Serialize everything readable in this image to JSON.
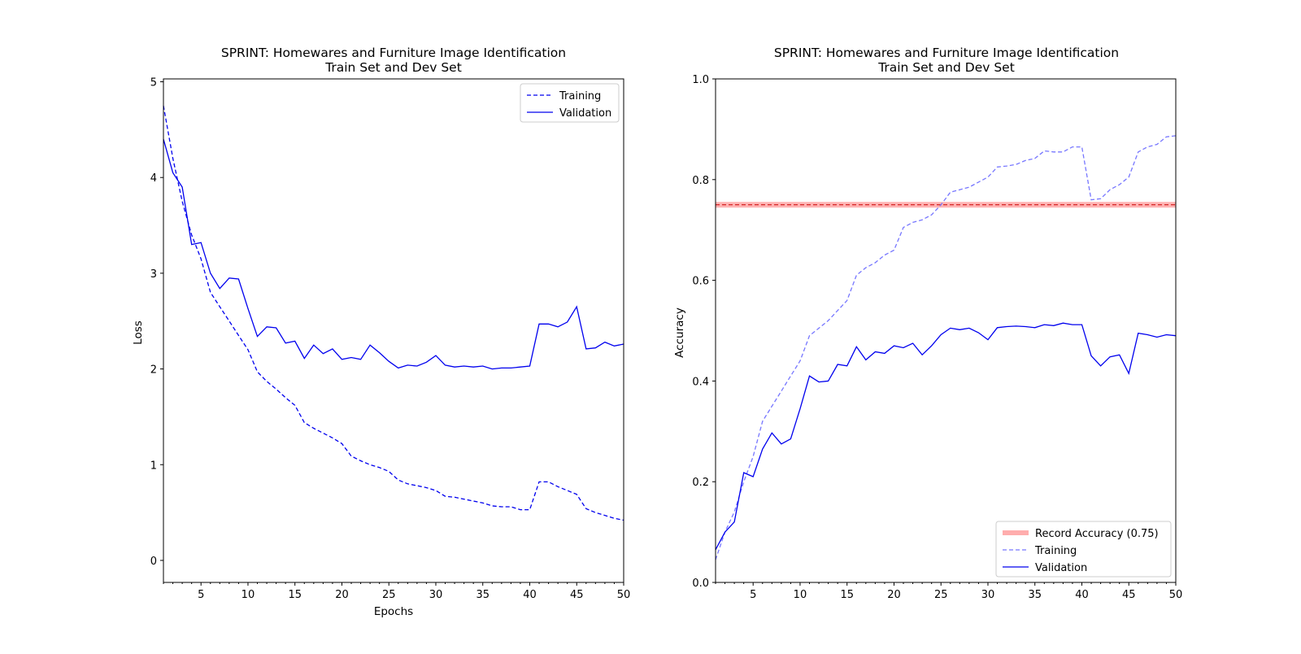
{
  "chart_data": [
    {
      "type": "line",
      "title": "SPRINT: Homewares and Furniture Image Identification",
      "subtitle": "Train Set and Dev Set",
      "xlabel": "Epochs",
      "ylabel": "Loss",
      "xlim": [
        1,
        50
      ],
      "ylim": [
        -0.23,
        5.03
      ],
      "xticks": [
        5,
        10,
        15,
        20,
        25,
        30,
        35,
        40,
        45,
        50
      ],
      "yticks": [
        0,
        1,
        2,
        3,
        4,
        5
      ],
      "grid": false,
      "legend_position": "top-right",
      "x": [
        1,
        2,
        3,
        4,
        5,
        6,
        7,
        8,
        9,
        10,
        11,
        12,
        13,
        14,
        15,
        16,
        17,
        18,
        19,
        20,
        21,
        22,
        23,
        24,
        25,
        26,
        27,
        28,
        29,
        30,
        31,
        32,
        33,
        34,
        35,
        36,
        37,
        38,
        39,
        40,
        41,
        42,
        43,
        44,
        45,
        46,
        47,
        48,
        49,
        50
      ],
      "series": [
        {
          "name": "Training",
          "style": "dashed",
          "color": "#0000ee",
          "values": [
            4.75,
            4.2,
            3.75,
            3.4,
            3.15,
            2.8,
            2.65,
            2.5,
            2.35,
            2.2,
            1.97,
            1.87,
            1.79,
            1.7,
            1.62,
            1.44,
            1.38,
            1.33,
            1.28,
            1.22,
            1.09,
            1.04,
            1.0,
            0.97,
            0.93,
            0.84,
            0.8,
            0.78,
            0.76,
            0.73,
            0.67,
            0.66,
            0.64,
            0.62,
            0.6,
            0.57,
            0.56,
            0.56,
            0.53,
            0.53,
            0.82,
            0.82,
            0.77,
            0.73,
            0.69,
            0.54,
            0.5,
            0.47,
            0.44,
            0.42
          ]
        },
        {
          "name": "Validation",
          "style": "solid",
          "color": "#0000ee",
          "values": [
            4.4,
            4.05,
            3.9,
            3.3,
            3.32,
            3.0,
            2.84,
            2.95,
            2.94,
            2.63,
            2.34,
            2.44,
            2.43,
            2.27,
            2.29,
            2.11,
            2.25,
            2.16,
            2.21,
            2.1,
            2.12,
            2.1,
            2.25,
            2.17,
            2.08,
            2.01,
            2.04,
            2.03,
            2.07,
            2.14,
            2.04,
            2.02,
            2.03,
            2.02,
            2.03,
            2.0,
            2.01,
            2.01,
            2.02,
            2.03,
            2.47,
            2.47,
            2.44,
            2.49,
            2.65,
            2.21,
            2.22,
            2.28,
            2.24,
            2.26
          ]
        }
      ]
    },
    {
      "type": "line",
      "title": "SPRINT: Homewares and Furniture Image Identification",
      "subtitle": "Train Set and Dev Set",
      "xlabel": "",
      "ylabel": "Accuracy",
      "xlim": [
        1,
        50
      ],
      "ylim": [
        0.0,
        1.0
      ],
      "xticks": [
        5,
        10,
        15,
        20,
        25,
        30,
        35,
        40,
        45,
        50
      ],
      "yticks": [
        0.0,
        0.2,
        0.4,
        0.6,
        0.8,
        1.0
      ],
      "ytick_labels": [
        "0.0",
        "0.2",
        "0.4",
        "0.6",
        "0.8",
        "1.0"
      ],
      "grid": false,
      "legend_position": "bottom-right",
      "reference_line": {
        "name": "Record Accuracy (0.75)",
        "value": 0.75,
        "color": "#ff9999"
      },
      "x": [
        1,
        2,
        3,
        4,
        5,
        6,
        7,
        8,
        9,
        10,
        11,
        12,
        13,
        14,
        15,
        16,
        17,
        18,
        19,
        20,
        21,
        22,
        23,
        24,
        25,
        26,
        27,
        28,
        29,
        30,
        31,
        32,
        33,
        34,
        35,
        36,
        37,
        38,
        39,
        40,
        41,
        42,
        43,
        44,
        45,
        46,
        47,
        48,
        49,
        50
      ],
      "series": [
        {
          "name": "Training",
          "style": "dashed",
          "color": "#7777ff",
          "values": [
            0.045,
            0.1,
            0.14,
            0.2,
            0.25,
            0.32,
            0.35,
            0.38,
            0.41,
            0.44,
            0.49,
            0.505,
            0.52,
            0.54,
            0.56,
            0.61,
            0.625,
            0.635,
            0.65,
            0.66,
            0.705,
            0.715,
            0.72,
            0.73,
            0.75,
            0.775,
            0.78,
            0.785,
            0.795,
            0.805,
            0.825,
            0.827,
            0.83,
            0.838,
            0.842,
            0.857,
            0.855,
            0.855,
            0.865,
            0.865,
            0.76,
            0.762,
            0.78,
            0.79,
            0.805,
            0.855,
            0.865,
            0.87,
            0.885,
            0.887
          ]
        },
        {
          "name": "Validation",
          "style": "solid",
          "color": "#0000ee",
          "values": [
            0.065,
            0.1,
            0.12,
            0.218,
            0.21,
            0.265,
            0.297,
            0.275,
            0.285,
            0.345,
            0.41,
            0.398,
            0.4,
            0.433,
            0.43,
            0.468,
            0.442,
            0.458,
            0.455,
            0.47,
            0.466,
            0.475,
            0.452,
            0.47,
            0.492,
            0.505,
            0.502,
            0.505,
            0.496,
            0.482,
            0.506,
            0.508,
            0.509,
            0.508,
            0.506,
            0.512,
            0.51,
            0.515,
            0.512,
            0.512,
            0.45,
            0.43,
            0.448,
            0.452,
            0.415,
            0.495,
            0.492,
            0.487,
            0.492,
            0.49
          ]
        }
      ]
    }
  ]
}
